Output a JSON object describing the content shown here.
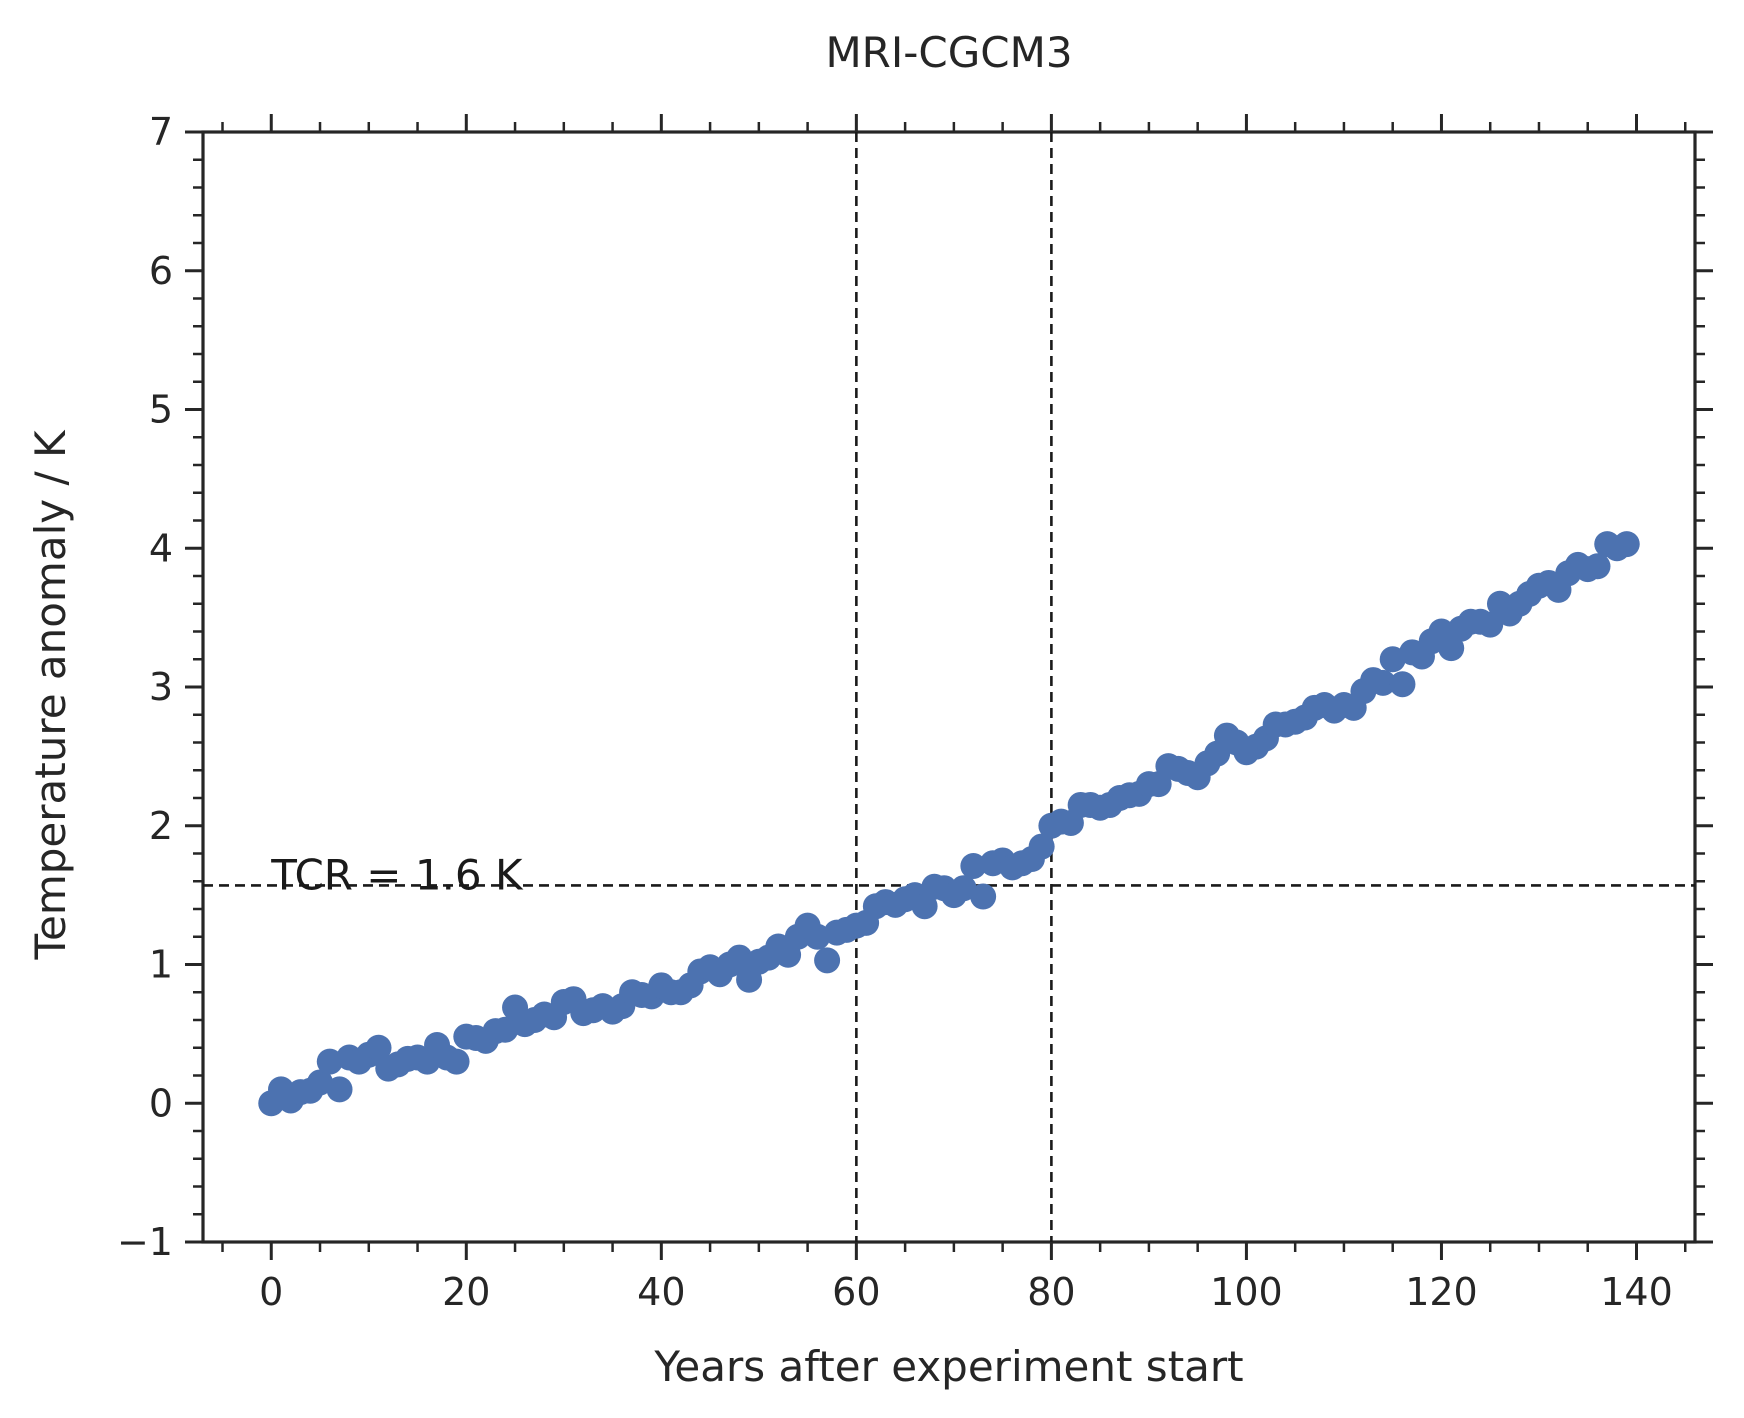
{
  "chart_data": {
    "type": "scatter",
    "title": "MRI-CGCM3",
    "xlabel": "Years after experiment start",
    "ylabel": "Temperature anomaly / K",
    "xlim": [
      -7,
      146
    ],
    "ylim": [
      -1,
      7
    ],
    "xticks": [
      0,
      20,
      40,
      60,
      80,
      100,
      120,
      140
    ],
    "yticks": [
      -1,
      0,
      1,
      2,
      3,
      4,
      5,
      6,
      7
    ],
    "xtick_labels": [
      "0",
      "20",
      "40",
      "60",
      "80",
      "100",
      "120",
      "140"
    ],
    "ytick_labels": [
      "−1",
      "0",
      "1",
      "2",
      "3",
      "4",
      "5",
      "6",
      "7"
    ],
    "marker_color": "#4c72b0",
    "line_color": "#1a1a1a",
    "vlines": [
      60,
      80
    ],
    "hline": 1.57,
    "annotation": {
      "text": "TCR = 1.6 K",
      "x": 0,
      "y": 1.6
    },
    "series": [
      {
        "x": [
          0,
          1,
          2,
          3,
          4,
          5,
          6,
          7,
          8,
          9,
          10,
          11,
          12,
          13,
          14,
          15,
          16,
          17,
          18,
          19,
          20,
          21,
          22,
          23,
          24,
          25,
          26,
          27,
          28,
          29,
          30,
          31,
          32,
          33,
          34,
          35,
          36,
          37,
          38,
          39,
          40,
          41,
          42,
          43,
          44,
          45,
          46,
          47,
          48,
          49,
          50,
          51,
          52,
          53,
          54,
          55,
          56,
          57,
          58,
          59,
          60,
          61,
          62,
          63,
          64,
          65,
          66,
          67,
          68,
          69,
          70,
          71,
          72,
          73,
          74,
          75,
          76,
          77,
          78,
          79,
          80,
          81,
          82,
          83,
          84,
          85,
          86,
          87,
          88,
          89,
          90,
          91,
          92,
          93,
          94,
          95,
          96,
          97,
          98,
          99,
          100,
          101,
          102,
          103,
          104,
          105,
          106,
          107,
          108,
          109,
          110,
          111,
          112,
          113,
          114,
          115,
          116,
          117,
          118,
          119,
          120,
          121,
          122,
          123,
          124,
          125,
          126,
          127,
          128,
          129,
          130,
          131,
          132,
          133,
          134,
          135,
          136,
          137,
          138,
          139
        ],
        "y": [
          0.0,
          0.1,
          0.02,
          0.08,
          0.09,
          0.15,
          0.3,
          0.1,
          0.33,
          0.3,
          0.35,
          0.4,
          0.25,
          0.28,
          0.32,
          0.33,
          0.3,
          0.42,
          0.33,
          0.3,
          0.48,
          0.47,
          0.45,
          0.52,
          0.53,
          0.69,
          0.57,
          0.6,
          0.64,
          0.62,
          0.73,
          0.75,
          0.65,
          0.67,
          0.7,
          0.66,
          0.7,
          0.8,
          0.78,
          0.77,
          0.85,
          0.8,
          0.8,
          0.85,
          0.95,
          0.98,
          0.93,
          1.0,
          1.05,
          0.89,
          1.02,
          1.05,
          1.13,
          1.07,
          1.2,
          1.28,
          1.2,
          1.03,
          1.23,
          1.25,
          1.28,
          1.3,
          1.42,
          1.45,
          1.43,
          1.47,
          1.5,
          1.42,
          1.56,
          1.55,
          1.5,
          1.55,
          1.71,
          1.49,
          1.73,
          1.75,
          1.7,
          1.73,
          1.76,
          1.85,
          2.0,
          2.03,
          2.02,
          2.15,
          2.15,
          2.13,
          2.15,
          2.2,
          2.22,
          2.23,
          2.3,
          2.3,
          2.43,
          2.41,
          2.38,
          2.35,
          2.45,
          2.52,
          2.65,
          2.6,
          2.53,
          2.57,
          2.63,
          2.73,
          2.73,
          2.75,
          2.78,
          2.85,
          2.87,
          2.83,
          2.87,
          2.85,
          2.97,
          3.05,
          3.03,
          3.2,
          3.02,
          3.25,
          3.22,
          3.33,
          3.4,
          3.28,
          3.42,
          3.47,
          3.47,
          3.45,
          3.6,
          3.53,
          3.6,
          3.67,
          3.73,
          3.75,
          3.7,
          3.82,
          3.88,
          3.85,
          3.87,
          4.03,
          4.0,
          4.03
        ]
      }
    ]
  }
}
